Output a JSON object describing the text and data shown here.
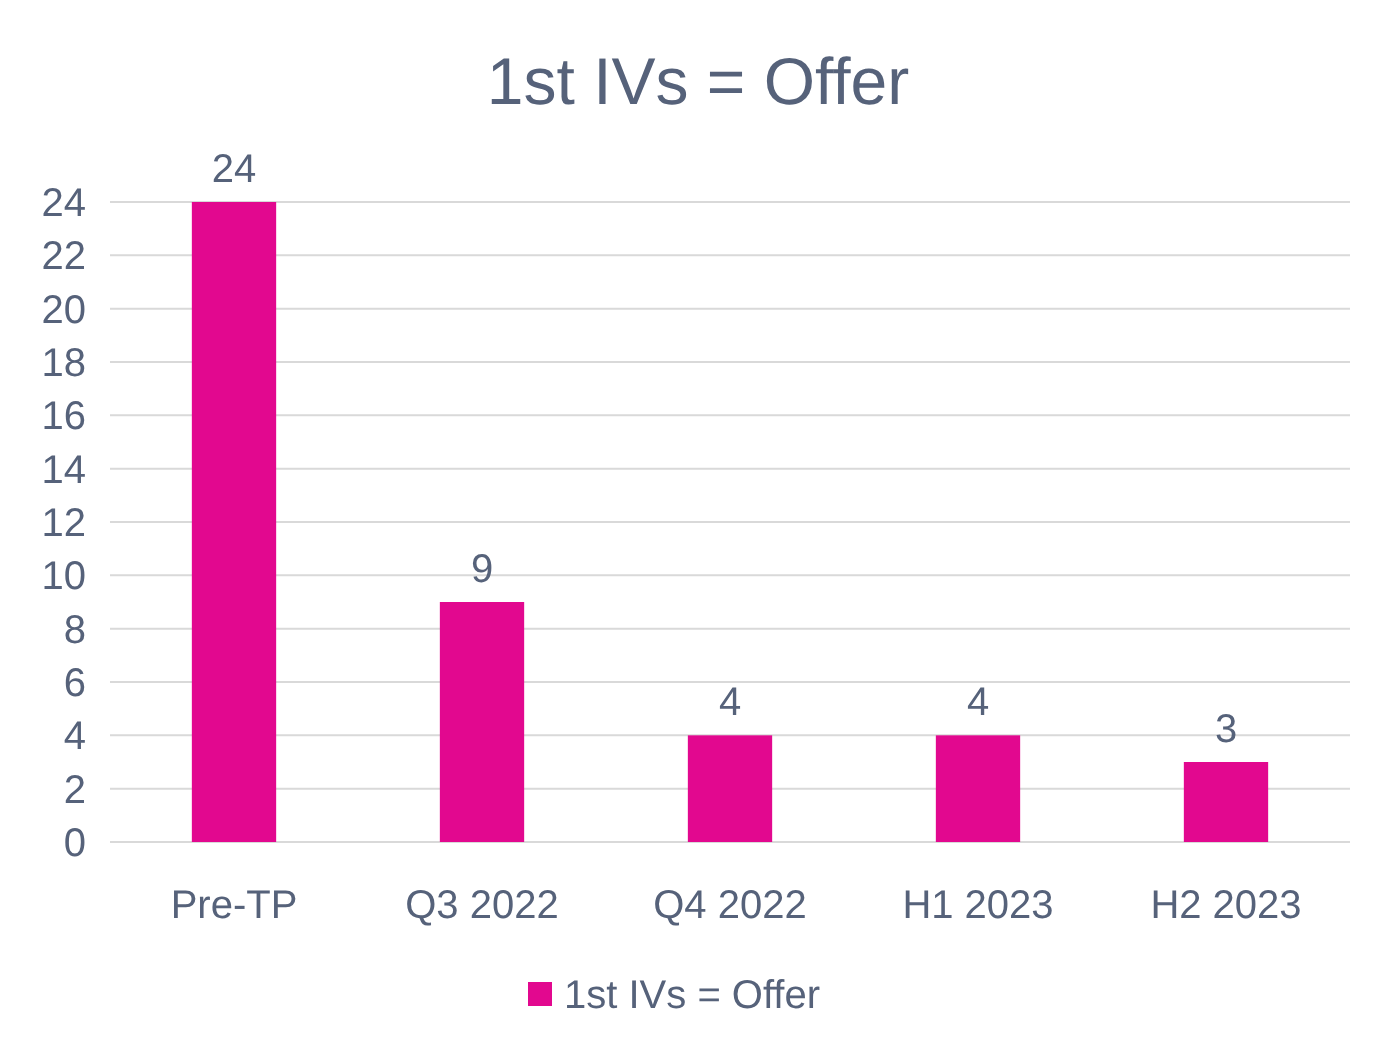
{
  "chart_data": {
    "type": "bar",
    "title": "1st IVs = Offer",
    "categories": [
      "Pre-TP",
      "Q3 2022",
      "Q4 2022",
      "H1 2023",
      "H2 2023"
    ],
    "series": [
      {
        "name": "1st IVs = Offer",
        "color": "#e2088f",
        "values": [
          24,
          9,
          4,
          4,
          3
        ]
      }
    ],
    "ylim": [
      0,
      24
    ],
    "yticks": [
      0,
      2,
      4,
      6,
      8,
      10,
      12,
      14,
      16,
      18,
      20,
      22,
      24
    ],
    "grid": "y",
    "data_labels": true,
    "legend": "bottom"
  }
}
